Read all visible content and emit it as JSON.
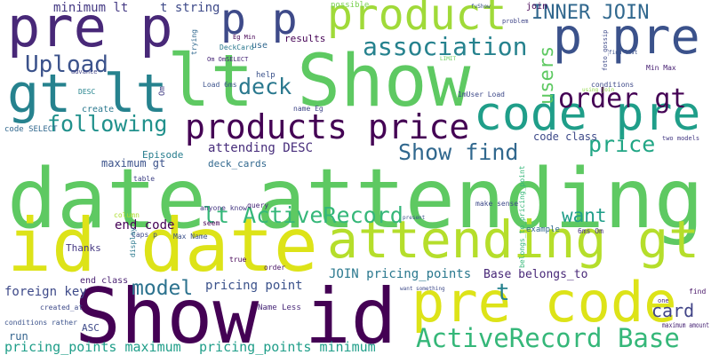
{
  "words": [
    "date attending",
    "id date",
    "Show id",
    "lt Show",
    "code pre",
    "attending gt",
    "pre code",
    "gt lt",
    "pre p",
    "p p",
    "product",
    "p pre",
    "products price",
    "association",
    "INNER JOIN",
    "Upload",
    "order gt",
    "deck",
    "following",
    "Show find",
    "price",
    "lt ActiveRecord",
    "want",
    "model",
    "ActiveRecord Base",
    "card",
    "t",
    "users",
    "pricing_points maximum",
    "pricing_points minimum",
    "JOIN pricing_points",
    "Base belongs_to",
    "pricing point",
    "end code",
    "foreign key",
    "attending DESC",
    "minimum lt",
    "t string",
    "code class",
    "results",
    "maximum gt",
    "Episode",
    "deck_cards",
    "run",
    "ASC",
    "create",
    "Thanks",
    "end class",
    "Name Less",
    "maximum amount",
    "find",
    "DESC",
    "help",
    "use",
    "possible",
    "join",
    "Caps p",
    "Max Name",
    "anyone know",
    "seem",
    "query",
    "true",
    "order",
    "column",
    "code SELECT",
    "Load 6ms",
    "name Eg",
    "make sense",
    "example",
    "6ms Om",
    "conditions",
    "Min Max",
    "two models",
    "conditions rather",
    "created_at",
    "DeckCard",
    "table",
    "display",
    "1mUser Load",
    "advance",
    "problem",
    "fvShow",
    "LIMIT",
    "present",
    "one",
    "want something",
    "find last",
    "using join",
    "Eg Min",
    "Om OmSELECT",
    "trying",
    "Om",
    "belongs_to_pricing_point",
    "foto_gossip"
  ]
}
